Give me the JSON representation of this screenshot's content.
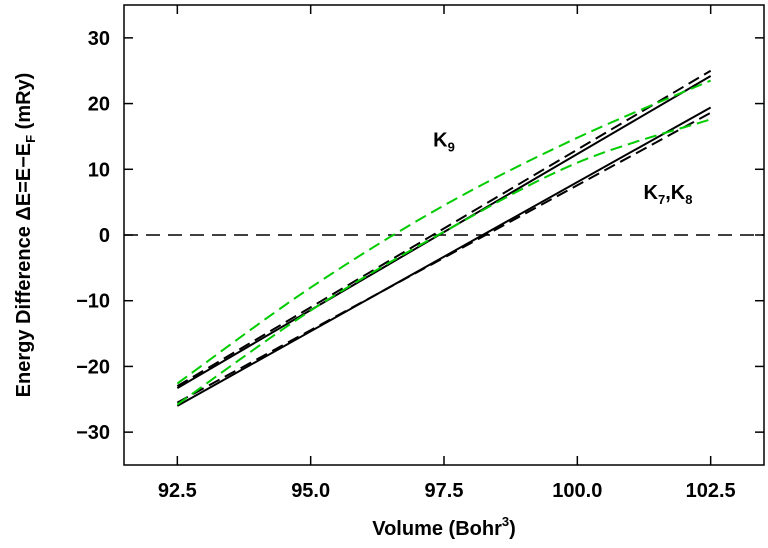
{
  "chart_data": {
    "type": "line",
    "xlabel": "Volume (Bohr",
    "xlabel_sup": "3",
    "xlabel_end": ")",
    "ylabel_prefix": "Energy Difference ",
    "ylabel_delta": "Δ",
    "ylabel_mid": "E=E−E",
    "ylabel_sub": "F",
    "ylabel_end": " (mRy)",
    "xlim": [
      91.5,
      103.5
    ],
    "ylim": [
      -35,
      35
    ],
    "xticks": [
      "92.5",
      "95.0",
      "97.5",
      "100.0",
      "102.5"
    ],
    "xtick_values": [
      92.5,
      95.0,
      97.5,
      100.0,
      102.5
    ],
    "yticks": [
      "30",
      "20",
      "10",
      "0",
      "−10",
      "−20",
      "−30"
    ],
    "ytick_values": [
      30,
      20,
      10,
      0,
      -10,
      -20,
      -30
    ],
    "grid": false,
    "zero_line": 0,
    "series": [
      {
        "style": "solid",
        "color": "#000000",
        "x": [
          92.5,
          102.5
        ],
        "y": [
          -23.3,
          24.2
        ]
      },
      {
        "style": "dashed",
        "color": "#000000",
        "x": [
          92.5,
          102.5
        ],
        "y": [
          -23.0,
          25.0
        ]
      },
      {
        "style": "dashed",
        "color": "#00cc00",
        "x": [
          92.5,
          95.0,
          97.5,
          100.0,
          102.5
        ],
        "y": [
          -22.6,
          -8.0,
          4.5,
          14.8,
          23.5
        ]
      },
      {
        "style": "solid",
        "color": "#000000",
        "x": [
          92.5,
          102.5
        ],
        "y": [
          -26.0,
          19.4
        ]
      },
      {
        "style": "dashed",
        "color": "#000000",
        "x": [
          92.5,
          102.5
        ],
        "y": [
          -25.5,
          18.6
        ]
      },
      {
        "style": "dashed",
        "color": "#00cc00",
        "x": [
          92.5,
          95.0,
          97.5,
          100.0,
          102.5
        ],
        "y": [
          -25.8,
          -11.5,
          0.5,
          11.0,
          17.6
        ]
      }
    ],
    "annotations": [
      {
        "name": "k9-label",
        "text": "K",
        "sub": "9",
        "x": 97.5,
        "y": 13.5
      },
      {
        "name": "k7-k8-label",
        "text": "K",
        "sub": "7",
        "text2": ",K",
        "sub2": "8",
        "x": 101.7,
        "y": 5.5
      }
    ]
  }
}
